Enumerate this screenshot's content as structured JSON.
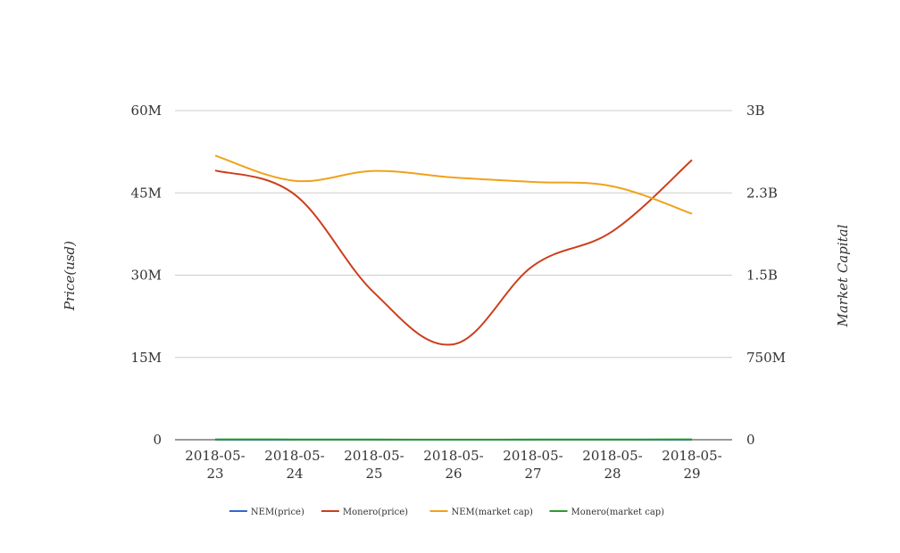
{
  "chart_data": {
    "type": "line",
    "title": "",
    "x": [
      "2018-05-23",
      "2018-05-24",
      "2018-05-25",
      "2018-05-26",
      "2018-05-27",
      "2018-05-28",
      "2018-05-29"
    ],
    "x_tick_labels": [
      [
        "2018-05-",
        "23"
      ],
      [
        "2018-05-",
        "24"
      ],
      [
        "2018-05-",
        "25"
      ],
      [
        "2018-05-",
        "26"
      ],
      [
        "2018-05-",
        "27"
      ],
      [
        "2018-05-",
        "28"
      ],
      [
        "2018-05-",
        "29"
      ]
    ],
    "ylabel_left": "Price(usd)",
    "ylabel_right": "Market Capital",
    "ylim_left": [
      0,
      60000000
    ],
    "ylim_right": [
      0,
      3000000000
    ],
    "yticks_left": [
      {
        "value": 0,
        "label": "0"
      },
      {
        "value": 15000000,
        "label": "15M"
      },
      {
        "value": 30000000,
        "label": "30M"
      },
      {
        "value": 45000000,
        "label": "45M"
      },
      {
        "value": 60000000,
        "label": "60M"
      }
    ],
    "yticks_right": [
      {
        "value": 0,
        "label": "0"
      },
      {
        "value": 750000000,
        "label": "750M"
      },
      {
        "value": 1500000000,
        "label": "1.5B"
      },
      {
        "value": 2250000000,
        "label": "2.3B"
      },
      {
        "value": 3000000000,
        "label": "3B"
      }
    ],
    "grid": true,
    "legend_position": "bottom",
    "series": [
      {
        "name": "NEM(price)",
        "axis": "left",
        "color": "#3366cc",
        "values": [
          0.2,
          0.19,
          0.19,
          0.18,
          0.18,
          0.18,
          0.17
        ]
      },
      {
        "name": "Monero(price)",
        "axis": "left",
        "color": "#cc3e1c",
        "values": [
          49100000,
          44700000,
          26800000,
          17400000,
          31700000,
          38000000,
          51000000
        ]
      },
      {
        "name": "NEM(market cap)",
        "axis": "right",
        "color": "#f0a21b",
        "values": [
          2590000000,
          2360000000,
          2450000000,
          2390000000,
          2350000000,
          2310000000,
          2060000000
        ]
      },
      {
        "name": "Monero(market cap)",
        "axis": "right",
        "color": "#2e9a2e",
        "values": [
          2700000,
          2500000,
          1600000,
          1100000,
          1900000,
          2300000,
          3100000
        ]
      }
    ]
  }
}
